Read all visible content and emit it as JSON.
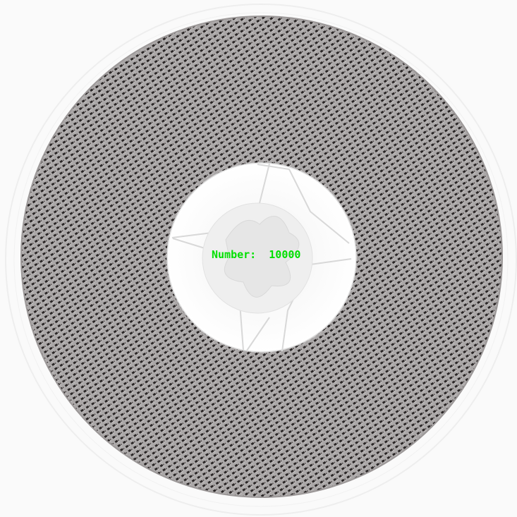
{
  "overlay": {
    "count_text": "Number:  10000",
    "count_color": "#00e000"
  },
  "reel": {
    "component_count": 10000,
    "tape_color": "#b9b7b7",
    "component_color": "#2a2626",
    "hub_color": "#ffffff",
    "background_color": "#fafafa"
  }
}
